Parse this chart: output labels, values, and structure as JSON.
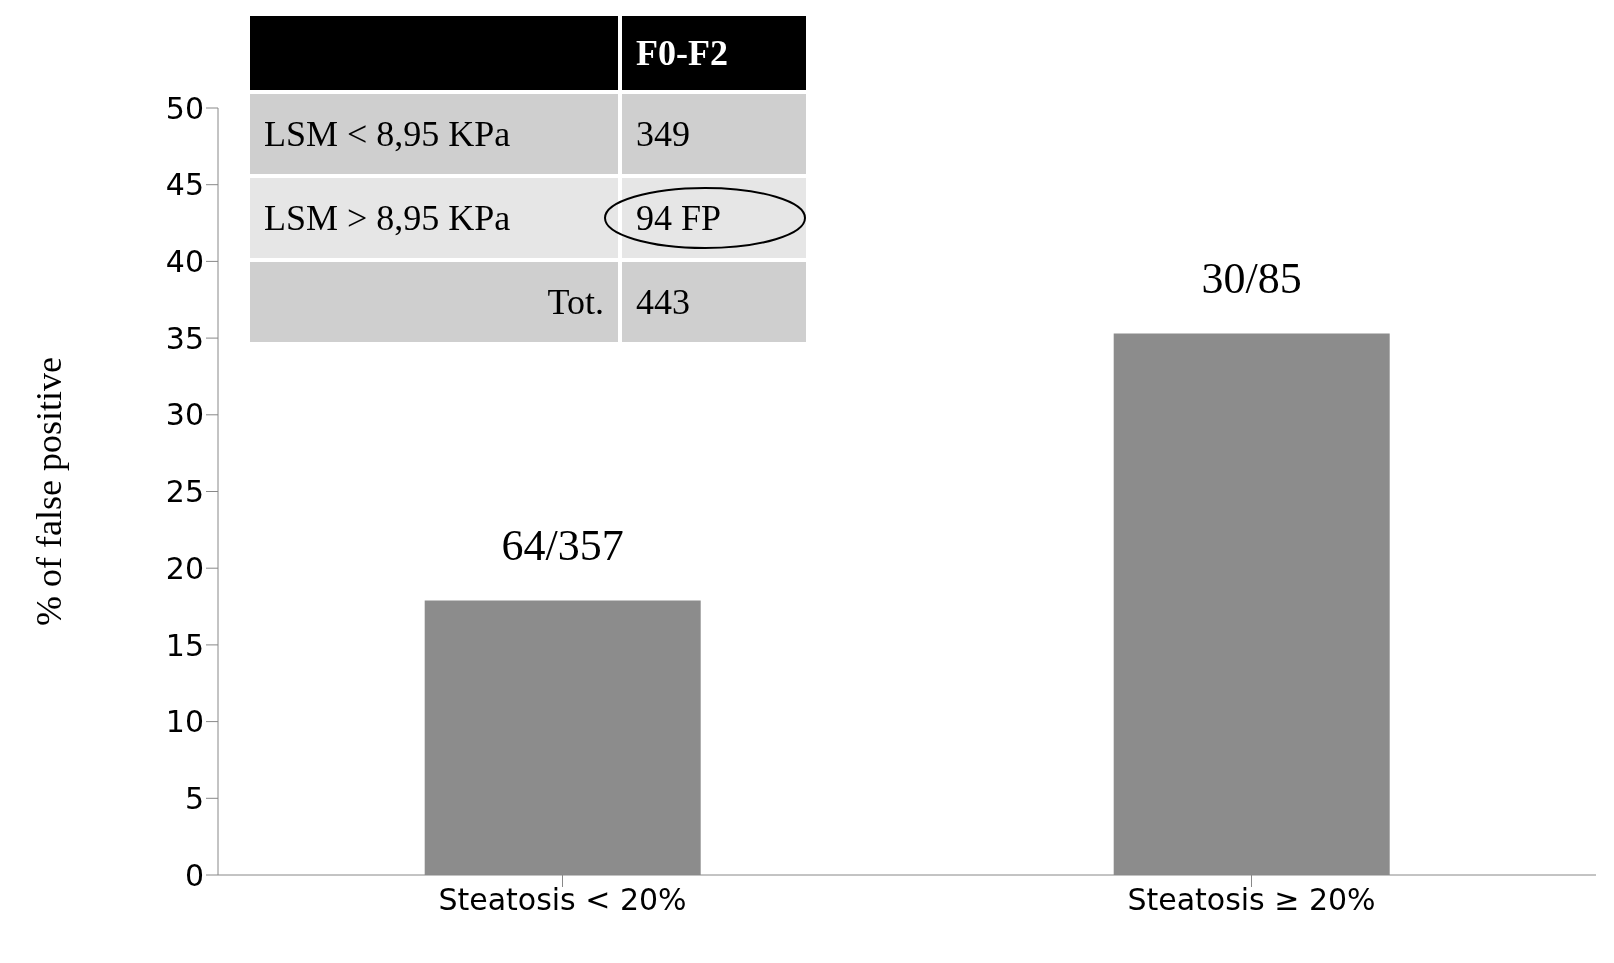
{
  "chart_data": {
    "type": "bar",
    "ylabel": "% of false positive",
    "categories": [
      "Steatosis < 20%",
      "Steatosis ≥ 20%"
    ],
    "values": [
      17.9,
      35.3
    ],
    "color": "#8c8c8c",
    "value_labels": [
      "64/357",
      "30/85"
    ],
    "ylim": [
      0,
      50
    ],
    "yticks": [
      0,
      5,
      10,
      15,
      20,
      25,
      30,
      35,
      40,
      45,
      50
    ],
    "grid": false,
    "legend": false,
    "annotations": [
      "F0-F2",
      "LSM < 8,95 KPa",
      "349",
      "LSM > 8,95 KPa",
      "94 FP",
      "Tot.",
      "443"
    ]
  }
}
